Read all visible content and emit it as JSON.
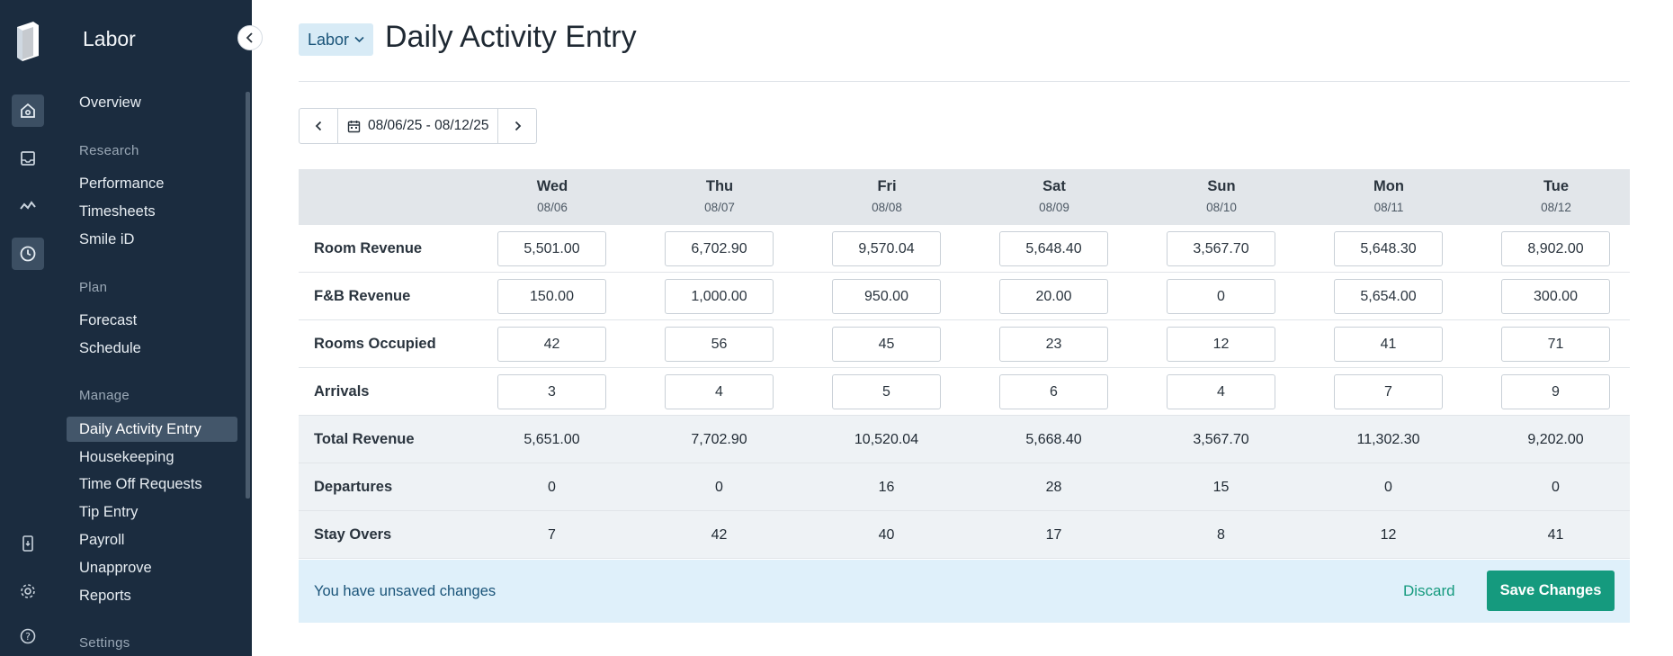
{
  "app": {
    "title": "Labor",
    "colors": {
      "rail_bg": "#1b2c3f",
      "accent": "#159a7e",
      "banner_bg": "#dff0fa"
    }
  },
  "rail": {
    "icons": [
      "logo-icon",
      "home-icon",
      "inbox-icon",
      "analytics-icon",
      "clock-icon",
      "mobile-icon",
      "gear-icon",
      "help-icon"
    ]
  },
  "sidebar": {
    "overview": "Overview",
    "sections": {
      "research": {
        "label": "Research",
        "items": [
          "Performance",
          "Timesheets",
          "Smile iD"
        ]
      },
      "plan": {
        "label": "Plan",
        "items": [
          "Forecast",
          "Schedule"
        ]
      },
      "manage": {
        "label": "Manage",
        "items": [
          "Daily Activity Entry",
          "Housekeeping",
          "Time Off Requests",
          "Tip Entry",
          "Payroll",
          "Unapprove",
          "Reports"
        ]
      },
      "settings": {
        "label": "Settings"
      }
    }
  },
  "header": {
    "module": "Labor",
    "title": "Daily Activity Entry"
  },
  "date_range": "08/06/25 - 08/12/25",
  "grid": {
    "days": [
      {
        "name": "Wed",
        "date": "08/06"
      },
      {
        "name": "Thu",
        "date": "08/07"
      },
      {
        "name": "Fri",
        "date": "08/08"
      },
      {
        "name": "Sat",
        "date": "08/09"
      },
      {
        "name": "Sun",
        "date": "08/10"
      },
      {
        "name": "Mon",
        "date": "08/11"
      },
      {
        "name": "Tue",
        "date": "08/12"
      }
    ],
    "input_rows": [
      {
        "label": "Room Revenue",
        "values": [
          "5,501.00",
          "6,702.90",
          "9,570.04",
          "5,648.40",
          "3,567.70",
          "5,648.30",
          "8,902.00"
        ]
      },
      {
        "label": "F&B Revenue",
        "values": [
          "150.00",
          "1,000.00",
          "950.00",
          "20.00",
          "0",
          "5,654.00",
          "300.00"
        ]
      },
      {
        "label": "Rooms Occupied",
        "values": [
          "42",
          "56",
          "45",
          "23",
          "12",
          "41",
          "71"
        ]
      },
      {
        "label": "Arrivals",
        "values": [
          "3",
          "4",
          "5",
          "6",
          "4",
          "7",
          "9"
        ]
      }
    ],
    "calc_rows": [
      {
        "label": "Total Revenue",
        "values": [
          "5,651.00",
          "7,702.90",
          "10,520.04",
          "5,668.40",
          "3,567.70",
          "11,302.30",
          "9,202.00"
        ]
      },
      {
        "label": "Departures",
        "values": [
          "0",
          "0",
          "16",
          "28",
          "15",
          "0",
          "0"
        ]
      },
      {
        "label": "Stay Overs",
        "values": [
          "7",
          "42",
          "40",
          "17",
          "8",
          "12",
          "41"
        ]
      }
    ]
  },
  "banner": {
    "message": "You have unsaved changes",
    "discard_label": "Discard",
    "save_label": "Save Changes"
  }
}
